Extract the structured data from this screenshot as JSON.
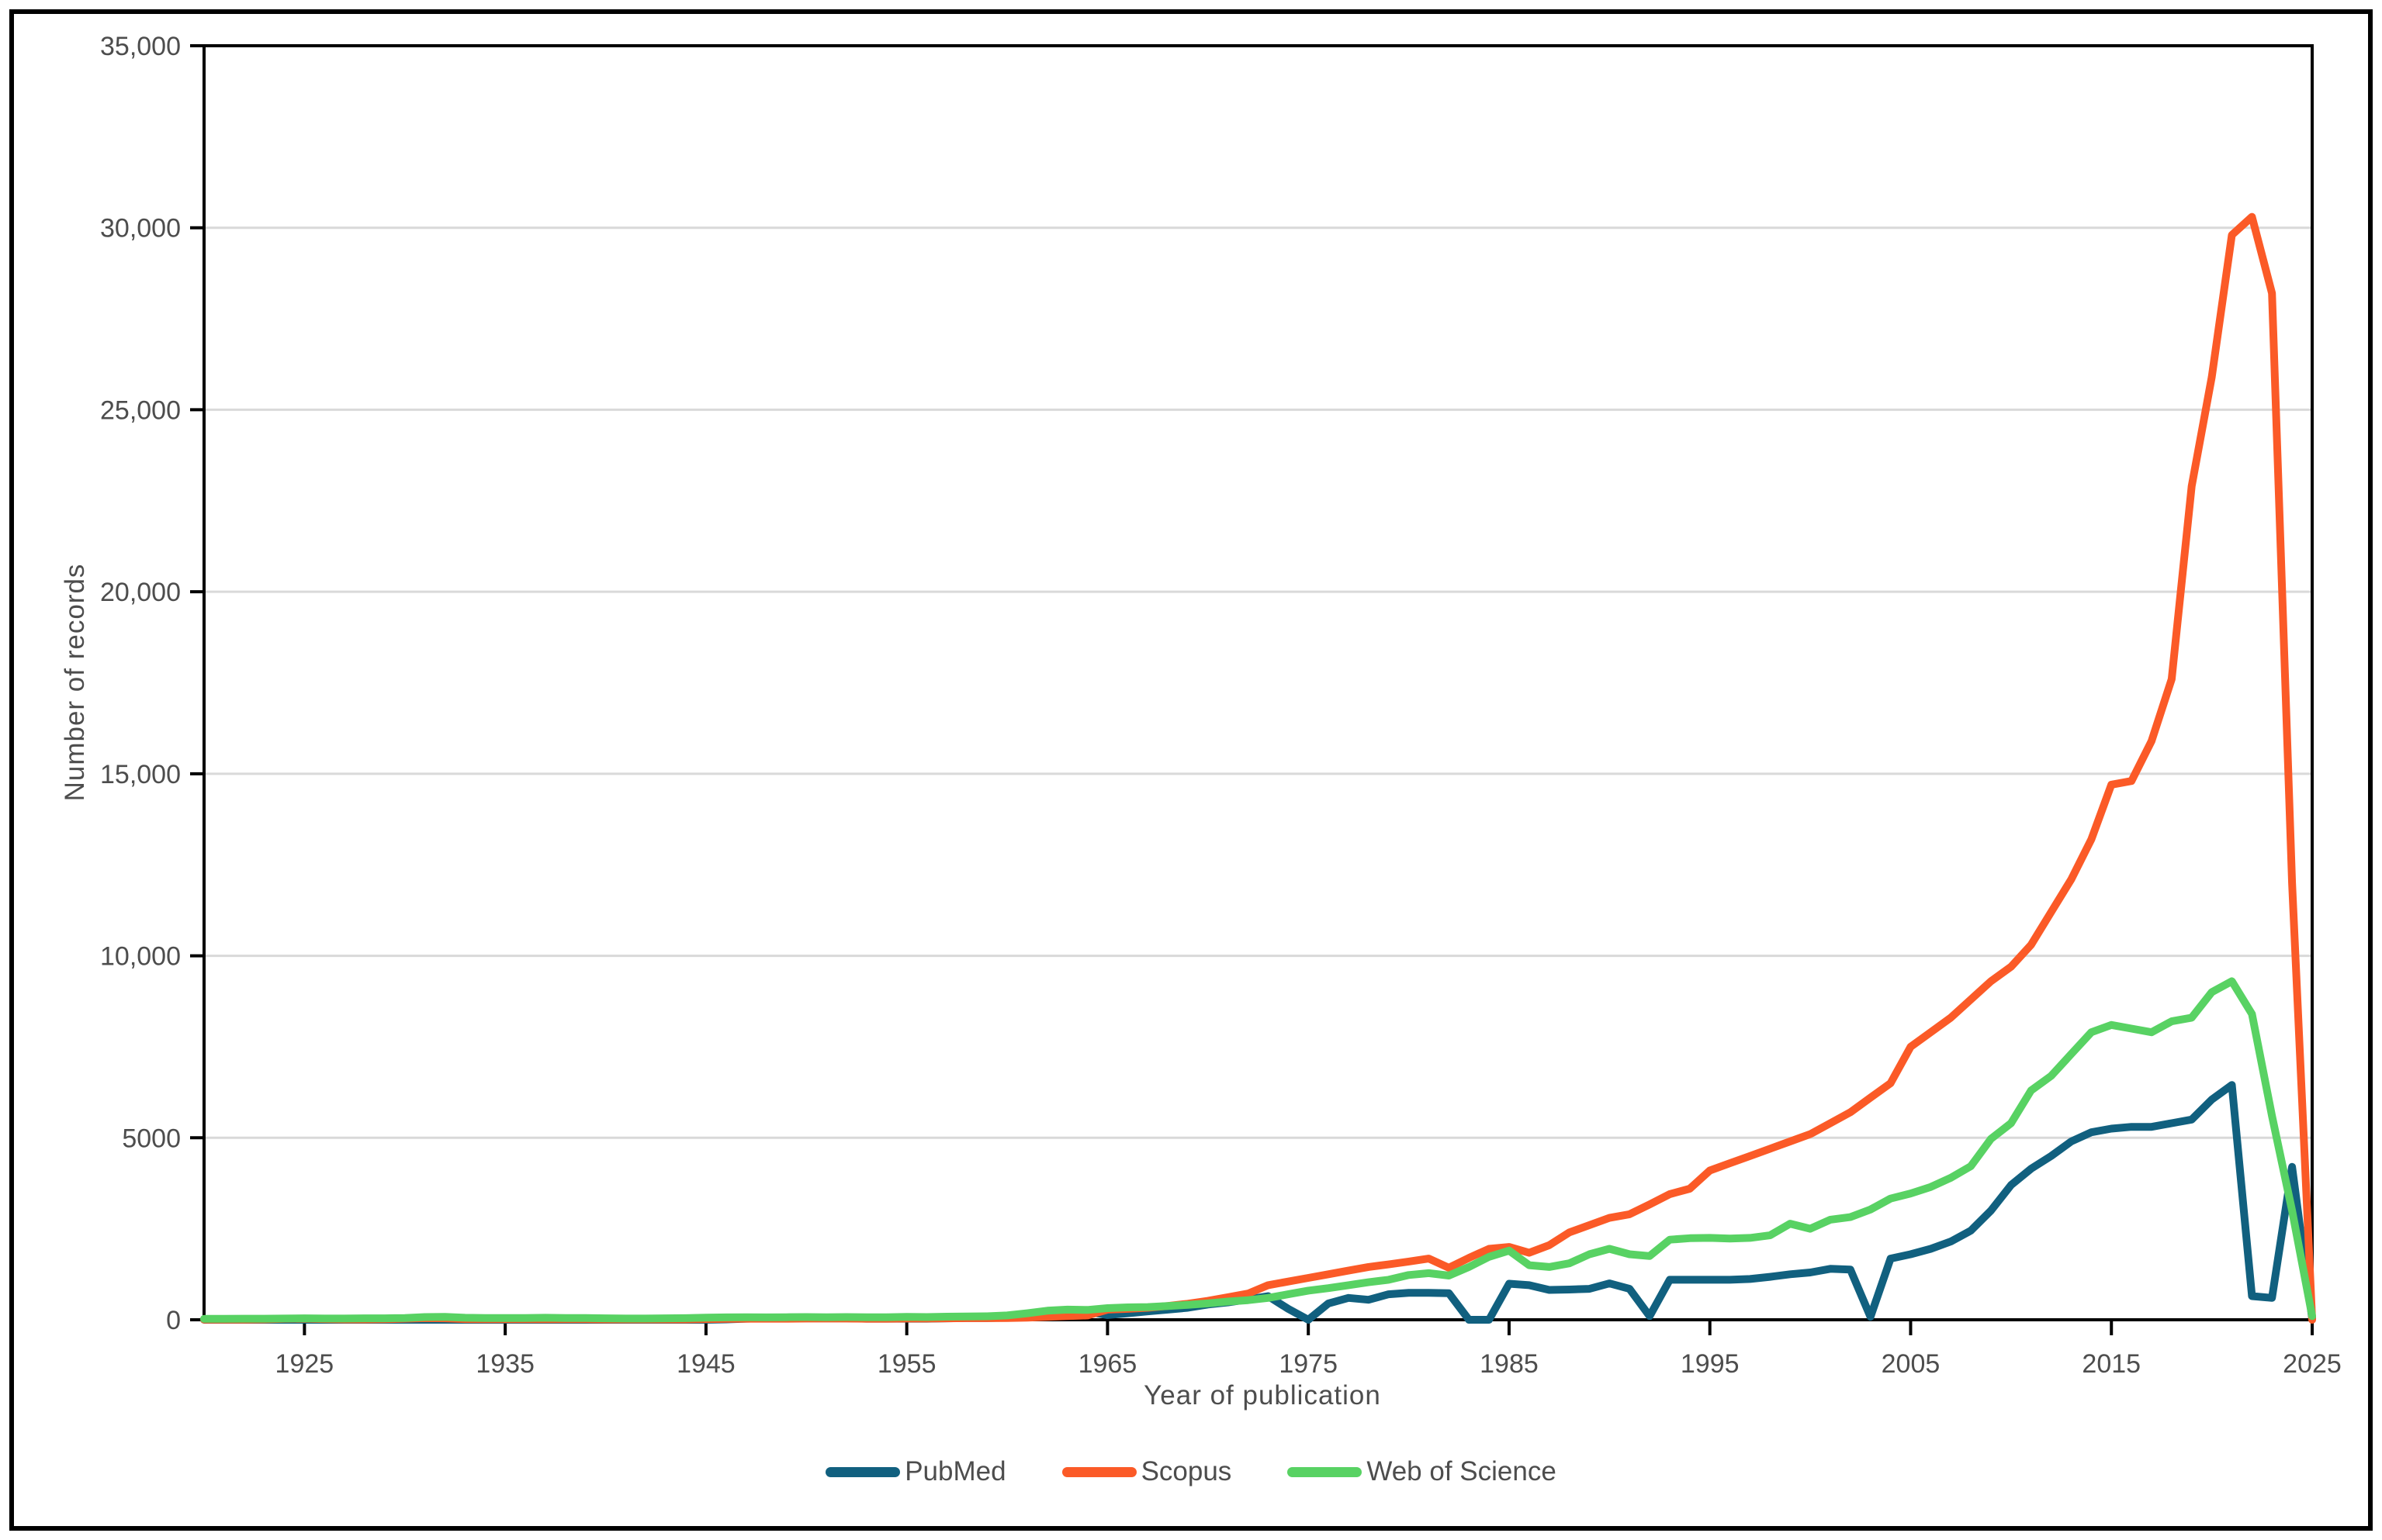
{
  "figure": {
    "background": "#ffffff",
    "border_color": "#000000",
    "text_color": "#4d4d4d",
    "grid_color": "#d9d9d9",
    "frame_color": "#000000"
  },
  "axes": {
    "x_title": "Year of publication",
    "y_title": "Number of records",
    "x_tick_years": [
      1925,
      1935,
      1945,
      1955,
      1965,
      1975,
      1985,
      1995,
      2005,
      2015,
      2025
    ],
    "x_tick_labels": [
      "1925",
      "1935",
      "1945",
      "1955",
      "1965",
      "1975",
      "1985",
      "1995",
      "2005",
      "2015",
      "2025"
    ],
    "y_tick_values": [
      0,
      5000,
      10000,
      15000,
      20000,
      25000,
      30000,
      35000
    ],
    "y_tick_labels": [
      "0",
      "5000",
      "10,000",
      "15,000",
      "20,000",
      "25,000",
      "30,000",
      "35,000"
    ]
  },
  "legend": {
    "items": [
      {
        "label": "PubMed",
        "color": "#11607f"
      },
      {
        "label": "Scopus",
        "color": "#fb5a27"
      },
      {
        "label": "Web of Science",
        "color": "#58d263"
      }
    ]
  },
  "chart_data": {
    "type": "line",
    "title": "",
    "xlabel": "Year of publication",
    "ylabel": "Number of records",
    "x_start": 1920,
    "x_end": 2025,
    "x_step": 1,
    "xlim": [
      1920,
      2025
    ],
    "ylim": [
      0,
      35000
    ],
    "grid": "horizontal",
    "legend_position": "bottom",
    "line_width": 10,
    "series": [
      {
        "name": "PubMed",
        "color": "#11607f",
        "values": [
          0,
          0,
          0,
          0,
          0,
          0,
          0,
          0,
          0,
          0,
          0,
          0,
          0,
          0,
          0,
          0,
          0,
          0,
          0,
          0,
          0,
          0,
          0,
          0,
          0,
          0,
          10,
          30,
          40,
          40,
          40,
          40,
          40,
          30,
          30,
          30,
          30,
          40,
          50,
          50,
          60,
          70,
          90,
          120,
          220,
          130,
          180,
          230,
          280,
          330,
          420,
          480,
          560,
          650,
          300,
          0,
          450,
          600,
          550,
          700,
          740,
          740,
          730,
          0,
          0,
          990,
          950,
          820,
          830,
          850,
          1000,
          850,
          100,
          1100,
          1100,
          1100,
          1100,
          1120,
          1180,
          1250,
          1300,
          1400,
          1380,
          80,
          1680,
          1800,
          1950,
          2150,
          2450,
          3000,
          3700,
          4150,
          4500,
          4900,
          5150,
          5250,
          5300,
          5300,
          5400,
          5500,
          6050,
          6450,
          650,
          600,
          4200,
          30
        ]
      },
      {
        "name": "Scopus",
        "color": "#fb5a27",
        "values": [
          5,
          5,
          5,
          10,
          25,
          30,
          20,
          10,
          10,
          15,
          30,
          45,
          40,
          20,
          15,
          15,
          15,
          15,
          15,
          15,
          10,
          10,
          10,
          10,
          10,
          20,
          25,
          30,
          30,
          30,
          35,
          35,
          35,
          30,
          30,
          35,
          35,
          40,
          45,
          45,
          50,
          60,
          80,
          100,
          120,
          280,
          300,
          330,
          380,
          440,
          520,
          620,
          720,
          950,
          1050,
          1150,
          1250,
          1350,
          1450,
          1520,
          1600,
          1680,
          1430,
          1700,
          1950,
          2000,
          1840,
          2050,
          2400,
          2600,
          2800,
          2900,
          3170,
          3450,
          3600,
          4100,
          4300,
          4500,
          4700,
          4900,
          5100,
          5400,
          5700,
          6100,
          6500,
          7500,
          7900,
          8300,
          8800,
          9300,
          9700,
          10300,
          11200,
          12100,
          13200,
          14700,
          14800,
          15900,
          17600,
          22900,
          25900,
          29800,
          30300,
          28200,
          12000,
          0
        ]
      },
      {
        "name": "Web of Science",
        "color": "#58d263",
        "values": [
          25,
          25,
          30,
          30,
          35,
          40,
          35,
          35,
          40,
          40,
          50,
          75,
          80,
          55,
          50,
          50,
          50,
          55,
          50,
          50,
          40,
          35,
          35,
          40,
          45,
          60,
          65,
          70,
          65,
          70,
          75,
          70,
          75,
          70,
          70,
          80,
          75,
          85,
          90,
          95,
          120,
          180,
          250,
          280,
          270,
          320,
          340,
          350,
          380,
          410,
          450,
          500,
          540,
          600,
          700,
          800,
          870,
          950,
          1030,
          1100,
          1230,
          1280,
          1215,
          1450,
          1730,
          1900,
          1500,
          1450,
          1550,
          1800,
          1950,
          1800,
          1750,
          2200,
          2240,
          2250,
          2230,
          2250,
          2320,
          2640,
          2500,
          2750,
          2820,
          3030,
          3330,
          3470,
          3650,
          3900,
          4220,
          4970,
          5400,
          6300,
          6700,
          7300,
          7900,
          8100,
          8000,
          7900,
          8200,
          8300,
          9000,
          9300,
          8400,
          5600,
          3000,
          100
        ]
      }
    ]
  }
}
